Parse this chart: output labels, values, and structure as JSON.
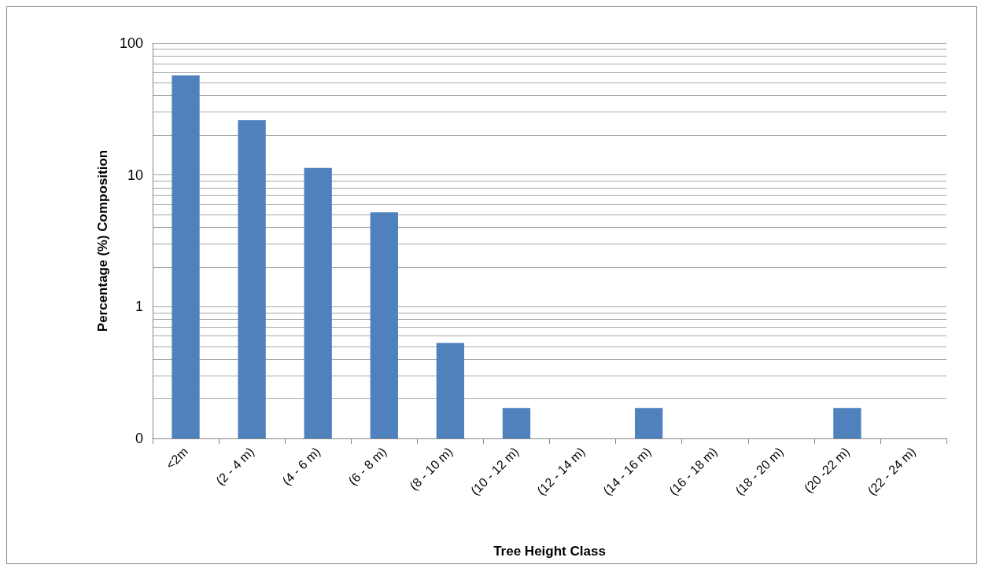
{
  "chart_data": {
    "type": "bar",
    "xlabel": "Tree Height Class",
    "ylabel": "Percentage (%) Composition",
    "categories": [
      "<2m",
      "(2 - 4 m)",
      "(4 - 6 m)",
      "(6 - 8 m)",
      "(8 - 10 m)",
      "(10 - 12 m)",
      "(12 - 14 m)",
      "(14 - 16 m)",
      "(16 - 18 m)",
      "(18 - 20 m)",
      "(20 -22 m)",
      "(22 - 24 m)"
    ],
    "values": [
      57,
      26,
      11.3,
      5.2,
      0.53,
      0.17,
      null,
      0.17,
      null,
      null,
      0.17,
      null
    ],
    "color": "#4f81bd",
    "log": "y",
    "ylim": [
      0.1,
      100
    ],
    "yticks": [
      {
        "value": 0.1,
        "label": "0"
      },
      {
        "value": 0.2,
        "label": null
      },
      {
        "value": 0.3,
        "label": null
      },
      {
        "value": 0.4,
        "label": null
      },
      {
        "value": 0.5,
        "label": null
      },
      {
        "value": 0.6,
        "label": null
      },
      {
        "value": 0.7,
        "label": null
      },
      {
        "value": 0.8,
        "label": null
      },
      {
        "value": 0.9,
        "label": null
      },
      1,
      {
        "value": 2,
        "label": null
      },
      {
        "value": 3,
        "label": null
      },
      {
        "value": 4,
        "label": null
      },
      {
        "value": 5,
        "label": null
      },
      {
        "value": 6,
        "label": null
      },
      {
        "value": 7,
        "label": null
      },
      {
        "value": 8,
        "label": null
      },
      {
        "value": 9,
        "label": null
      },
      10,
      {
        "value": 20,
        "label": null
      },
      {
        "value": 30,
        "label": null
      },
      {
        "value": 40,
        "label": null
      },
      {
        "value": 50,
        "label": null
      },
      {
        "value": 60,
        "label": null
      },
      {
        "value": 70,
        "label": null
      },
      {
        "value": 80,
        "label": null
      },
      {
        "value": 90,
        "label": null
      },
      100
    ],
    "grid": "y"
  }
}
